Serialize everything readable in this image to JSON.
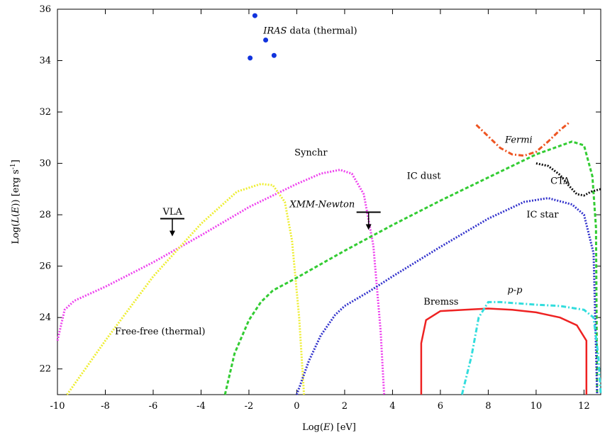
{
  "chart_data": {
    "type": "line",
    "xlabel": "Log(E) [eV]",
    "ylabel": "Log(L(E)) [erg s-1]",
    "xlim": [
      -10,
      12.7
    ],
    "ylim": [
      21,
      36
    ],
    "xticks": [
      -10,
      -8,
      -6,
      -4,
      -2,
      0,
      2,
      4,
      6,
      8,
      10,
      12
    ],
    "yticks": [
      22,
      24,
      26,
      28,
      30,
      32,
      34,
      36
    ],
    "grid": false,
    "legend": "none",
    "series": [
      {
        "name": "Synchr",
        "style": "dotted",
        "color": "#ee44ee",
        "points": [
          [
            -10,
            23.1
          ],
          [
            -9.7,
            24.3
          ],
          [
            -9.3,
            24.65
          ],
          [
            -8,
            25.2
          ],
          [
            -6,
            26.15
          ],
          [
            -4,
            27.2
          ],
          [
            -2,
            28.3
          ],
          [
            0,
            29.2
          ],
          [
            1,
            29.6
          ],
          [
            1.8,
            29.75
          ],
          [
            2.3,
            29.6
          ],
          [
            2.8,
            28.8
          ],
          [
            3.2,
            26.8
          ],
          [
            3.5,
            23.5
          ],
          [
            3.65,
            21
          ]
        ]
      },
      {
        "name": "Free-free (thermal)",
        "style": "dotted",
        "color": "#eeee33",
        "points": [
          [
            -9.6,
            21
          ],
          [
            -8,
            23.1
          ],
          [
            -6,
            25.6
          ],
          [
            -4,
            27.65
          ],
          [
            -2.5,
            28.9
          ],
          [
            -1.5,
            29.2
          ],
          [
            -1.0,
            29.15
          ],
          [
            -0.5,
            28.5
          ],
          [
            -0.2,
            27.0
          ],
          [
            0.1,
            24.0
          ],
          [
            0.3,
            21
          ]
        ]
      },
      {
        "name": "IC dust",
        "style": "dashed",
        "color": "#33cc33",
        "points": [
          [
            -3,
            21
          ],
          [
            -2.6,
            22.6
          ],
          [
            -2,
            23.9
          ],
          [
            -1.5,
            24.6
          ],
          [
            -1,
            25.05
          ],
          [
            0,
            25.55
          ],
          [
            2,
            26.6
          ],
          [
            4,
            27.6
          ],
          [
            6,
            28.55
          ],
          [
            8,
            29.45
          ],
          [
            10,
            30.35
          ],
          [
            11.5,
            30.85
          ],
          [
            12,
            30.7
          ],
          [
            12.35,
            29.5
          ],
          [
            12.5,
            27.5
          ],
          [
            12.55,
            21
          ]
        ]
      },
      {
        "name": "IC star",
        "style": "dotted",
        "color": "#3333cc",
        "points": [
          [
            0,
            21
          ],
          [
            0.5,
            22.3
          ],
          [
            1,
            23.3
          ],
          [
            1.6,
            24.1
          ],
          [
            2,
            24.45
          ],
          [
            3,
            25.0
          ],
          [
            4,
            25.6
          ],
          [
            6,
            26.75
          ],
          [
            8,
            27.85
          ],
          [
            9.5,
            28.5
          ],
          [
            10.5,
            28.65
          ],
          [
            11.5,
            28.4
          ],
          [
            12,
            28.0
          ],
          [
            12.4,
            26.5
          ],
          [
            12.55,
            21
          ]
        ]
      },
      {
        "name": "Bremss",
        "style": "solid",
        "color": "#ee2222",
        "points": [
          [
            5.2,
            21
          ],
          [
            5.2,
            23
          ],
          [
            5.4,
            23.9
          ],
          [
            6,
            24.25
          ],
          [
            7,
            24.3
          ],
          [
            8,
            24.35
          ],
          [
            9,
            24.3
          ],
          [
            10,
            24.2
          ],
          [
            11,
            24.0
          ],
          [
            11.7,
            23.7
          ],
          [
            12.1,
            23.1
          ],
          [
            12.1,
            21
          ]
        ]
      },
      {
        "name": "p-p",
        "style": "dashdot",
        "color": "#33dddd",
        "points": [
          [
            6.9,
            21
          ],
          [
            7.3,
            22.5
          ],
          [
            7.6,
            24
          ],
          [
            8,
            24.6
          ],
          [
            8.5,
            24.6
          ],
          [
            10,
            24.5
          ],
          [
            11,
            24.45
          ],
          [
            12,
            24.3
          ],
          [
            12.4,
            24.0
          ],
          [
            12.6,
            22.5
          ],
          [
            12.7,
            21
          ]
        ]
      },
      {
        "name": "Fermi",
        "style": "dashdot",
        "color": "#ee5522",
        "points": [
          [
            7.5,
            31.5
          ],
          [
            8.0,
            31.05
          ],
          [
            8.5,
            30.6
          ],
          [
            9.0,
            30.35
          ],
          [
            9.5,
            30.3
          ],
          [
            10.0,
            30.45
          ],
          [
            10.5,
            30.85
          ],
          [
            11.0,
            31.3
          ],
          [
            11.4,
            31.6
          ]
        ]
      },
      {
        "name": "CTA",
        "style": "dotted",
        "color": "#111111",
        "points": [
          [
            10,
            30.0
          ],
          [
            10.5,
            29.9
          ],
          [
            11,
            29.55
          ],
          [
            11.3,
            29.2
          ],
          [
            11.7,
            28.8
          ],
          [
            12.0,
            28.75
          ],
          [
            12.3,
            28.9
          ],
          [
            12.7,
            29.0
          ]
        ]
      },
      {
        "name": "IRAS data (thermal)",
        "type": "scatter",
        "color": "#1133dd",
        "points": [
          [
            -1.75,
            35.75
          ],
          [
            -1.3,
            34.8
          ],
          [
            -0.95,
            34.2
          ],
          [
            -1.95,
            34.1
          ]
        ]
      }
    ],
    "upper_limits": [
      {
        "label": "VLA",
        "x": -5.2,
        "y": 27.85
      },
      {
        "label": "XMM-Newton",
        "x": 3.0,
        "y": 28.1
      }
    ],
    "annotations": [
      {
        "text": "IRAS",
        "suffix": " data (thermal)",
        "italic": true,
        "x": -1.4,
        "y": 35.05
      },
      {
        "text": "Synchr",
        "italic": false,
        "x": -0.1,
        "y": 30.3
      },
      {
        "text": "IC dust",
        "italic": false,
        "x": 4.6,
        "y": 29.4
      },
      {
        "text": "XMM-Newton",
        "italic": true,
        "x": -0.3,
        "y": 28.3
      },
      {
        "text": "IC star",
        "italic": false,
        "x": 9.6,
        "y": 27.9
      },
      {
        "text": "VLA",
        "italic": false,
        "x": -5.6,
        "y": 28.0
      },
      {
        "text": "Free-free (thermal)",
        "italic": false,
        "x": -7.6,
        "y": 23.35
      },
      {
        "text": "Bremss",
        "italic": false,
        "x": 5.3,
        "y": 24.5
      },
      {
        "text": "p-p",
        "italic": true,
        "x": 8.8,
        "y": 24.95
      },
      {
        "text": "Fermi",
        "italic": true,
        "x": 8.7,
        "y": 30.8
      },
      {
        "text": "CTA",
        "italic": false,
        "x": 10.6,
        "y": 29.2
      }
    ]
  }
}
